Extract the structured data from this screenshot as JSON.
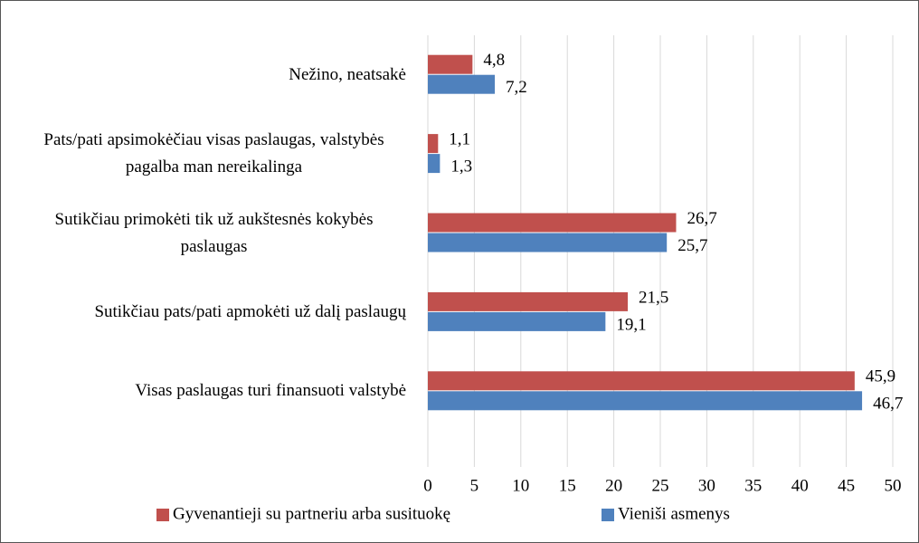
{
  "chart_data": {
    "type": "bar",
    "orientation": "horizontal",
    "categories": [
      "Nežino, neatsakė",
      "Pats/pati apsimokėčiau visas paslaugas, valstybės pagalba man nereikalinga",
      "Sutikčiau primokėti tik už aukštesnės kokybės paslaugas",
      "Sutikčiau pats/pati apmokėti už dalį paslaugų",
      "Visas paslaugas turi finansuoti valstybė"
    ],
    "series": [
      {
        "name": "Gyvenantieji su partneriu arba susituokę",
        "color": "#c0504d",
        "values": [
          4.8,
          1.1,
          26.7,
          21.5,
          45.9
        ],
        "value_labels": [
          "4,8",
          "1,1",
          "26,7",
          "21,5",
          "45,9"
        ]
      },
      {
        "name": "Vieniši asmenys",
        "color": "#4f81bd",
        "values": [
          7.2,
          1.3,
          25.7,
          19.1,
          46.7
        ],
        "value_labels": [
          "7,2",
          "1,3",
          "25,7",
          "19,1",
          "46,7"
        ]
      }
    ],
    "xlim": [
      0,
      50
    ],
    "xticks": [
      0,
      5,
      10,
      15,
      20,
      25,
      30,
      35,
      40,
      45,
      50
    ],
    "grid": true,
    "legend": "bottom"
  }
}
